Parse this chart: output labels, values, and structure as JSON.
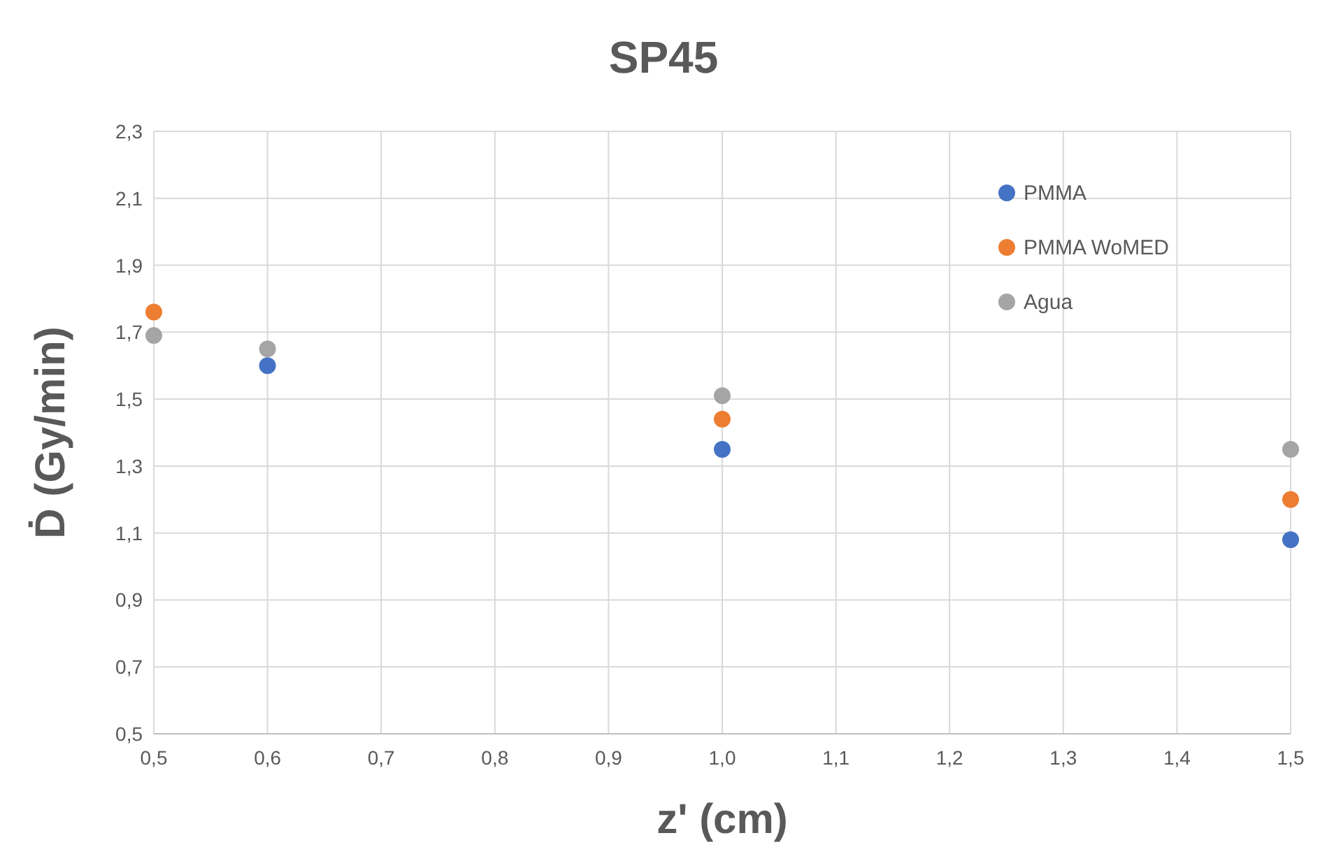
{
  "chart_data": {
    "type": "scatter",
    "title": "SP45",
    "xlabel": "z' (cm)",
    "ylabel": "Ḋ (Gy/min)",
    "x": [
      0.5,
      0.6,
      1.0,
      1.5
    ],
    "series": [
      {
        "name": "PMMA",
        "color": "#4472c4",
        "values": [
          null,
          1.6,
          1.35,
          1.08
        ]
      },
      {
        "name": "PMMA WoMED",
        "color": "#ed7d31",
        "values": [
          1.76,
          null,
          1.44,
          1.2
        ]
      },
      {
        "name": "Agua",
        "color": "#a5a5a5",
        "values": [
          1.69,
          1.65,
          1.51,
          1.35
        ]
      }
    ],
    "xlim": [
      0.5,
      1.5
    ],
    "xticks": [
      {
        "value": 0.5,
        "label": "0,5"
      },
      {
        "value": 0.6,
        "label": "0,6"
      },
      {
        "value": 0.7,
        "label": "0,7"
      },
      {
        "value": 0.8,
        "label": "0,8"
      },
      {
        "value": 0.9,
        "label": "0,9"
      },
      {
        "value": 1.0,
        "label": "1,0"
      },
      {
        "value": 1.1,
        "label": "1,1"
      },
      {
        "value": 1.2,
        "label": "1,2"
      },
      {
        "value": 1.3,
        "label": "1,3"
      },
      {
        "value": 1.4,
        "label": "1,4"
      },
      {
        "value": 1.5,
        "label": "1,5"
      }
    ],
    "ylim": [
      0.5,
      2.3
    ],
    "yticks": [
      {
        "value": 0.5,
        "label": "0,5"
      },
      {
        "value": 0.7,
        "label": "0,7"
      },
      {
        "value": 0.9,
        "label": "0,9"
      },
      {
        "value": 1.1,
        "label": "1,1"
      },
      {
        "value": 1.3,
        "label": "1,3"
      },
      {
        "value": 1.5,
        "label": "1,5"
      },
      {
        "value": 1.7,
        "label": "1,7"
      },
      {
        "value": 1.9,
        "label": "1,9"
      },
      {
        "value": 2.1,
        "label": "2,1"
      },
      {
        "value": 2.3,
        "label": "2,3"
      }
    ],
    "grid": true,
    "legend": "top right",
    "marker": "circle"
  }
}
